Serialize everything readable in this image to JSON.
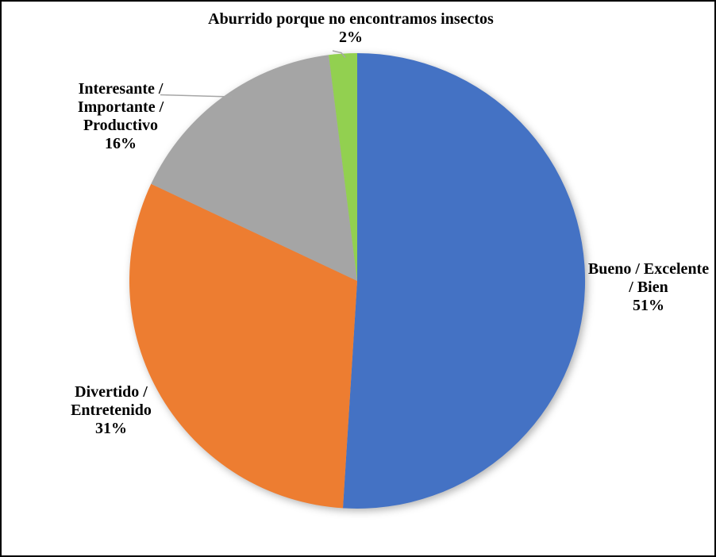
{
  "frame": {
    "background": "#FFFFFF",
    "border_color": "#000000"
  },
  "chart_data": {
    "type": "pie",
    "title": "",
    "categories": [
      "Bueno / Excelente / Bien",
      "Divertido / Entretenido",
      "Interesante / Importante / Productivo",
      "Aburrido porque no encontramos insectos"
    ],
    "values": [
      51,
      31,
      16,
      2
    ],
    "unit": "%",
    "colors": [
      "#4472C4",
      "#ED7D31",
      "#A5A5A5",
      "#92D050"
    ],
    "start_angle_deg": 0,
    "direction": "clockwise",
    "legend": "none",
    "background": "#FFFFFF",
    "label_color": "#000000",
    "leader_line_color": "#A6A6A6",
    "data_labels": [
      {
        "text": "Bueno / Excelente\n/ Bien\n51%"
      },
      {
        "text": "Divertido /\nEntretenido\n31%"
      },
      {
        "text": "Interesante /\nImportante /\nProductivo\n16%"
      },
      {
        "text": "Aburrido porque no encontramos insectos\n2%"
      }
    ]
  }
}
